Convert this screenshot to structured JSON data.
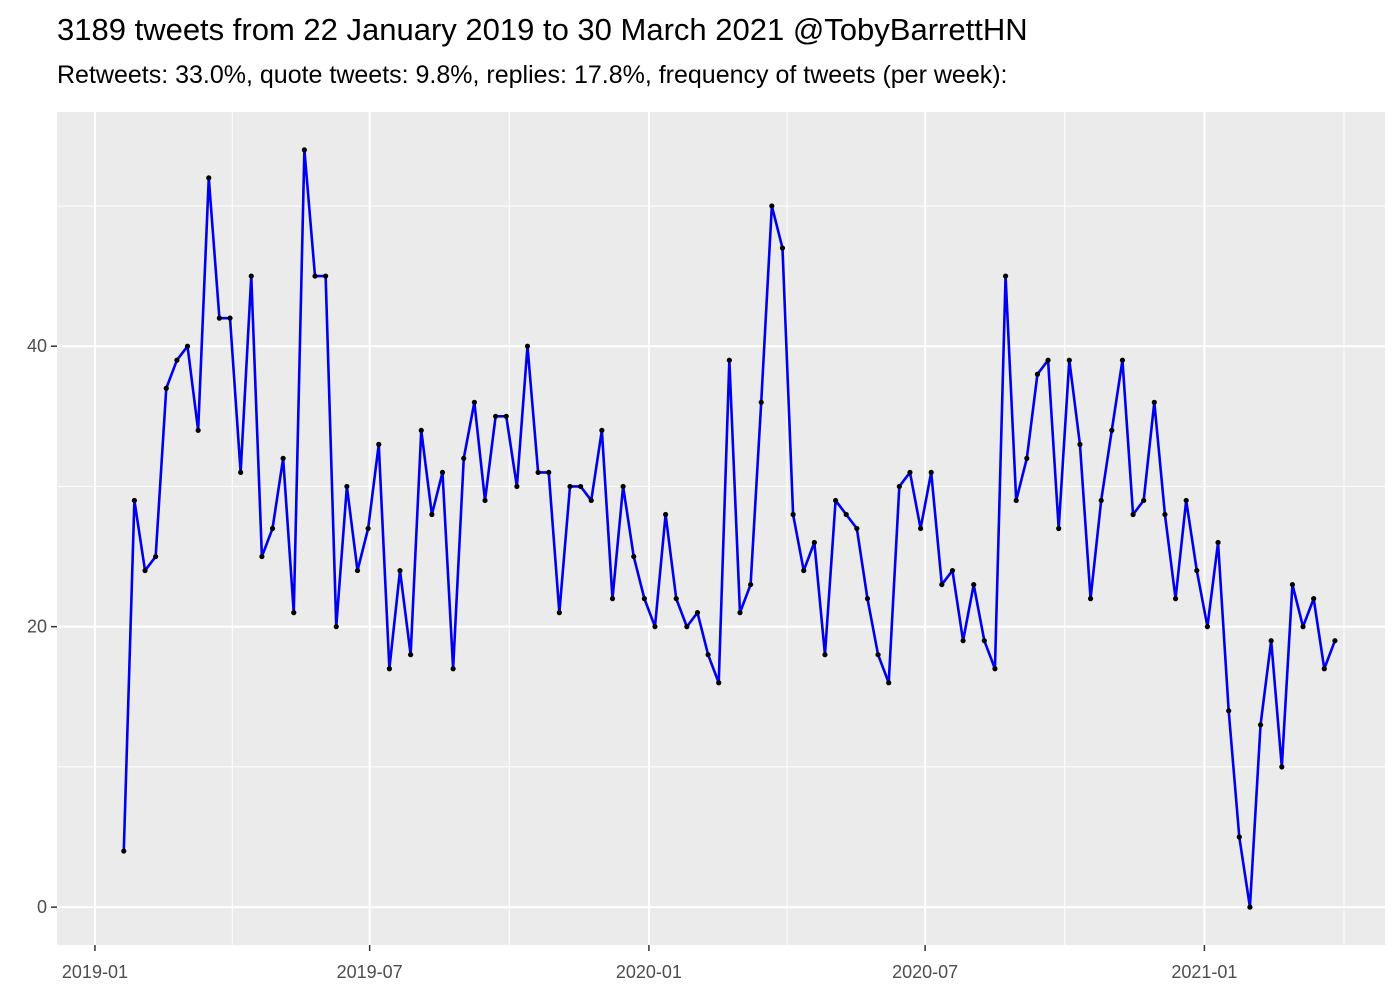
{
  "title": "3189 tweets from 22 January 2019 to 30 March 2021 @TobyBarrettHN",
  "subtitle": "Retweets: 33.0%, quote tweets: 9.8%, replies: 17.8%, frequency of tweets (per week):",
  "colors": {
    "line": "#0000ee",
    "point": "#000000",
    "panel": "#ebebeb",
    "grid": "#ffffff"
  },
  "chart_data": {
    "type": "line",
    "title": "3189 tweets from 22 January 2019 to 30 March 2021 @TobyBarrettHN",
    "subtitle": "Retweets: 33.0%, quote tweets: 9.8%, replies: 17.8%, frequency of tweets (per week):",
    "xlabel": "",
    "ylabel": "",
    "x_type": "date",
    "xlim": [
      "2018-12-07",
      "2021-04-30"
    ],
    "ylim": [
      -2.7,
      56.7
    ],
    "x_ticks": [
      "2019-01",
      "2019-07",
      "2020-01",
      "2020-07",
      "2021-01"
    ],
    "y_ticks": [
      0,
      20,
      40
    ],
    "grid": true,
    "legend": "none",
    "series": [
      {
        "x": [
          "2019-01-20",
          "2019-01-27",
          "2019-02-03",
          "2019-02-10",
          "2019-02-17",
          "2019-02-24",
          "2019-03-03",
          "2019-03-10",
          "2019-03-17",
          "2019-03-24",
          "2019-03-31",
          "2019-04-07",
          "2019-04-14",
          "2019-04-21",
          "2019-04-28",
          "2019-05-05",
          "2019-05-12",
          "2019-05-19",
          "2019-05-26",
          "2019-06-02",
          "2019-06-09",
          "2019-06-16",
          "2019-06-23",
          "2019-06-30",
          "2019-07-07",
          "2019-07-14",
          "2019-07-21",
          "2019-07-28",
          "2019-08-04",
          "2019-08-11",
          "2019-08-18",
          "2019-08-25",
          "2019-09-01",
          "2019-09-08",
          "2019-09-15",
          "2019-09-22",
          "2019-09-29",
          "2019-10-06",
          "2019-10-13",
          "2019-10-20",
          "2019-10-27",
          "2019-11-03",
          "2019-11-10",
          "2019-11-17",
          "2019-11-24",
          "2019-12-01",
          "2019-12-08",
          "2019-12-15",
          "2019-12-22",
          "2019-12-29",
          "2020-01-05",
          "2020-01-12",
          "2020-01-19",
          "2020-01-26",
          "2020-02-02",
          "2020-02-09",
          "2020-02-16",
          "2020-02-23",
          "2020-03-01",
          "2020-03-08",
          "2020-03-15",
          "2020-03-22",
          "2020-03-29",
          "2020-04-05",
          "2020-04-12",
          "2020-04-19",
          "2020-04-26",
          "2020-05-03",
          "2020-05-10",
          "2020-05-17",
          "2020-05-24",
          "2020-05-31",
          "2020-06-07",
          "2020-06-14",
          "2020-06-21",
          "2020-06-28",
          "2020-07-05",
          "2020-07-12",
          "2020-07-19",
          "2020-07-26",
          "2020-08-02",
          "2020-08-09",
          "2020-08-16",
          "2020-08-23",
          "2020-08-30",
          "2020-09-06",
          "2020-09-13",
          "2020-09-20",
          "2020-09-27",
          "2020-10-04",
          "2020-10-11",
          "2020-10-18",
          "2020-10-25",
          "2020-11-01",
          "2020-11-08",
          "2020-11-15",
          "2020-11-22",
          "2020-11-29",
          "2020-12-06",
          "2020-12-13",
          "2020-12-20",
          "2020-12-27",
          "2021-01-03",
          "2021-01-10",
          "2021-01-17",
          "2021-01-24",
          "2021-01-31",
          "2021-02-07",
          "2021-02-14",
          "2021-02-21",
          "2021-02-28",
          "2021-03-07",
          "2021-03-14",
          "2021-03-21",
          "2021-03-28"
        ],
        "y": [
          4,
          29,
          24,
          25,
          37,
          39,
          40,
          34,
          52,
          42,
          42,
          31,
          45,
          25,
          27,
          32,
          21,
          54,
          45,
          45,
          20,
          30,
          24,
          27,
          33,
          17,
          24,
          18,
          34,
          28,
          31,
          17,
          32,
          36,
          29,
          35,
          35,
          30,
          40,
          31,
          31,
          21,
          30,
          30,
          29,
          34,
          22,
          30,
          25,
          22,
          20,
          28,
          22,
          20,
          21,
          18,
          16,
          39,
          21,
          23,
          36,
          50,
          47,
          28,
          24,
          26,
          18,
          29,
          28,
          27,
          22,
          18,
          16,
          30,
          31,
          27,
          31,
          23,
          24,
          19,
          23,
          19,
          17,
          45,
          29,
          32,
          38,
          39,
          27,
          39,
          33,
          22,
          29,
          34,
          39,
          28,
          29,
          36,
          28,
          22,
          29,
          24,
          20,
          26,
          14,
          5,
          0,
          13,
          19,
          10,
          23,
          20,
          22,
          17,
          19
        ]
      }
    ]
  }
}
